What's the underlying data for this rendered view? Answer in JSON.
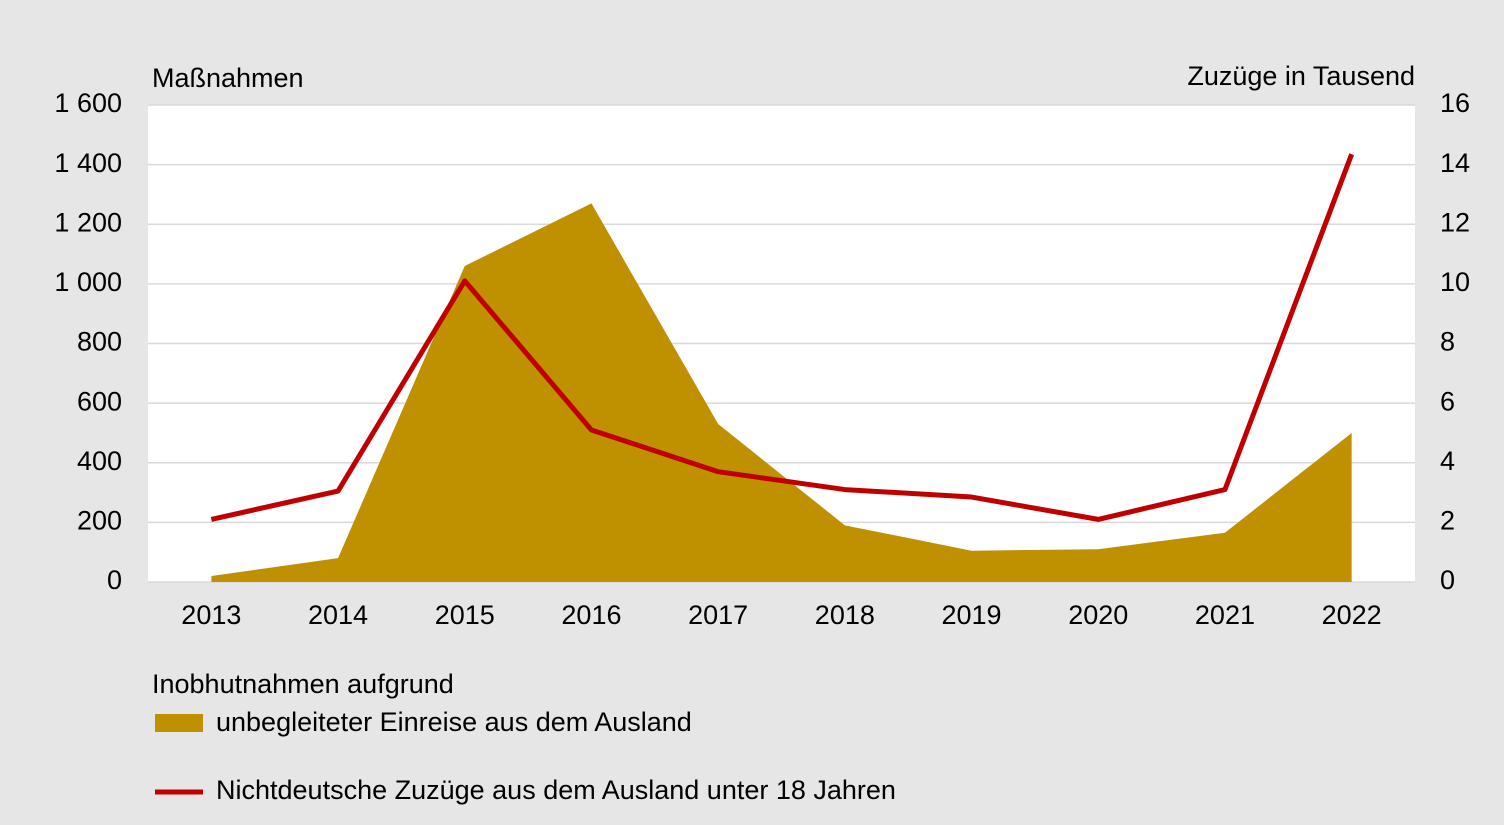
{
  "chart_data": {
    "type": "area-line",
    "y_label": "Maßnahmen",
    "y2_label": "Zuzüge in Tausend",
    "categories": [
      "2013",
      "2014",
      "2015",
      "2016",
      "2017",
      "2018",
      "2019",
      "2020",
      "2021",
      "2022"
    ],
    "legend_title": "Inobhutnahmen aufgrund",
    "series": [
      {
        "name": "unbegleiteter Einreise aus dem Ausland",
        "type": "area",
        "color": "#bf9000",
        "values": [
          20,
          80,
          1060,
          1270,
          530,
          190,
          105,
          110,
          165,
          500
        ]
      },
      {
        "name": "Nichtdeutsche Zuzüge aus dem Ausland unter 18 Jahren",
        "type": "line",
        "axis": "y2",
        "color": "#c00000",
        "values": [
          2.1,
          3.05,
          10.1,
          5.1,
          3.7,
          3.1,
          2.85,
          2.1,
          3.1,
          14.35
        ]
      }
    ],
    "ylim": [
      0,
      1600
    ],
    "yticks": [
      0,
      200,
      400,
      600,
      800,
      {
        "value": 1000,
        "label": "1 000"
      },
      {
        "value": 1200,
        "label": "1 200"
      },
      {
        "value": 1400,
        "label": "1 400"
      },
      {
        "value": 1600,
        "label": "1 600"
      }
    ],
    "y2lim": [
      0,
      16
    ],
    "y2ticks": [
      0,
      2,
      4,
      6,
      8,
      10,
      12,
      14,
      16
    ],
    "grid": true
  }
}
